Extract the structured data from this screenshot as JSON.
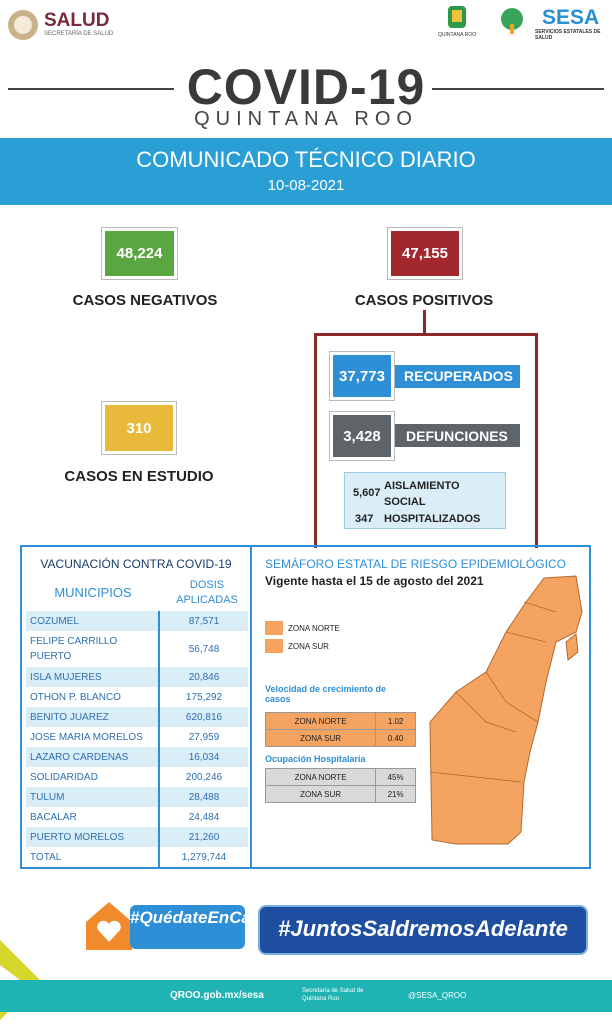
{
  "header": {
    "agency": "SALUD",
    "agency_subtitle": "SECRETARÍA DE SALUD",
    "state_logo": "QUINTANA ROO",
    "sesa": "SESA",
    "sesa_subtitle": "SERVICIOS ESTATALES DE SALUD"
  },
  "title": "COVID-19",
  "subtitle": "QUINTANA ROO",
  "banner": {
    "title": "COMUNICADO TÉCNICO DIARIO",
    "date": "10-08-2021"
  },
  "stats": {
    "negativos": {
      "value": "48,224",
      "label": "CASOS NEGATIVOS"
    },
    "positivos": {
      "value": "47,155",
      "label": "CASOS POSITIVOS"
    },
    "estudio": {
      "value": "310",
      "label": "CASOS EN ESTUDIO"
    },
    "recuperados": {
      "value": "37,773",
      "label": "RECUPERADOS"
    },
    "defunciones": {
      "value": "3,428",
      "label": "DEFUNCIONES"
    },
    "aislamiento": {
      "value": "5,607",
      "label": "AISLAMIENTO SOCIAL"
    },
    "hospitalizados": {
      "value": "347",
      "label": "HOSPITALIZADOS"
    }
  },
  "vacunacion": {
    "title": "VACUNACIÓN CONTRA COVID-19",
    "headers": [
      "MUNICIPIOS",
      "DOSIS APLICADAS"
    ],
    "rows": [
      [
        "COZUMEL",
        "87,571"
      ],
      [
        "FELIPE CARRILLO PUERTO",
        "56,748"
      ],
      [
        "ISLA MUJERES",
        "20,846"
      ],
      [
        "OTHON P. BLANCO",
        "175,292"
      ],
      [
        "BENITO JUAREZ",
        "620,816"
      ],
      [
        "JOSE MARIA MORELOS",
        "27,959"
      ],
      [
        "LAZARO CARDENAS",
        "16,034"
      ],
      [
        "SOLIDARIDAD",
        "200,246"
      ],
      [
        "TULUM",
        "28,488"
      ],
      [
        "BACALAR",
        "24,484"
      ],
      [
        "PUERTO MORELOS",
        "21,260"
      ],
      [
        "TOTAL",
        "1,279,744"
      ]
    ]
  },
  "semaforo": {
    "title": "SEMÁFORO ESTATAL DE RIESGO EPIDEMIOLÓGICO",
    "vigencia": "Vigente hasta el 15 de agosto del 2021",
    "legend": [
      "ZONA NORTE",
      "ZONA SUR"
    ],
    "velocidad_title": "Velocidad de crecimiento de casos",
    "velocidad": [
      [
        "ZONA NORTE",
        "1.02"
      ],
      [
        "ZONA SUR",
        "0.40"
      ]
    ],
    "ocupacion_title": "Ocupación Hospitalaria",
    "ocupacion": [
      [
        "ZONA NORTE",
        "45%"
      ],
      [
        "ZONA SUR",
        "21%"
      ]
    ]
  },
  "footer": {
    "quedate": "#QuédateEnCasa",
    "juntos": "#JuntosSaldremosAdelante",
    "web": "QROO.gob.mx/sesa",
    "secretaria": "Secretaría de Salud de Quintana Roo",
    "twitter": "@SESA_QROO"
  }
}
